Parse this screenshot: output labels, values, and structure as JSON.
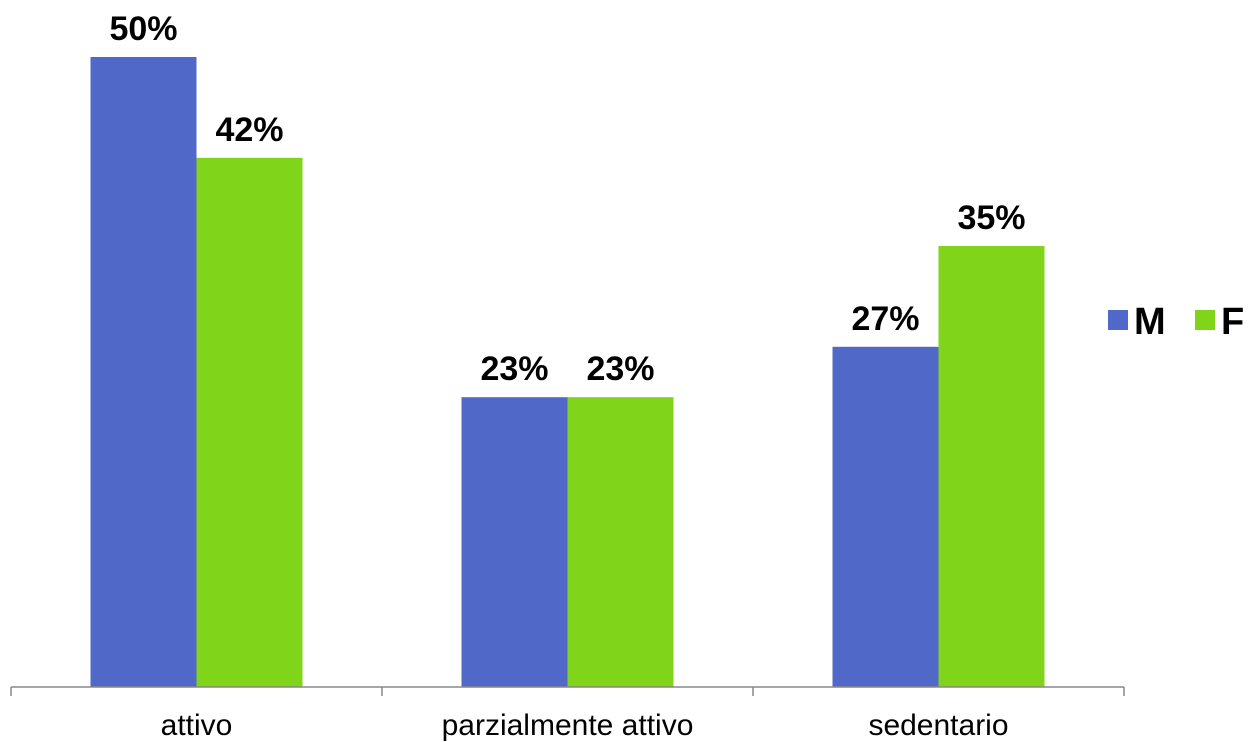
{
  "chart_data": {
    "type": "bar",
    "title": "",
    "xlabel": "",
    "ylabel": "",
    "categories": [
      "attivo",
      "parzialmente attivo",
      "sedentario"
    ],
    "series": [
      {
        "name": "M",
        "color": "#5068C8",
        "values": [
          50,
          23,
          27
        ],
        "labels": [
          "50%",
          "23%",
          "27%"
        ]
      },
      {
        "name": "F",
        "color": "#80D41A",
        "values": [
          42,
          23,
          35
        ],
        "labels": [
          "42%",
          "23%",
          "35%"
        ]
      }
    ],
    "ylim": [
      0,
      50
    ],
    "unit": "%",
    "grid": false,
    "legend": "right"
  }
}
